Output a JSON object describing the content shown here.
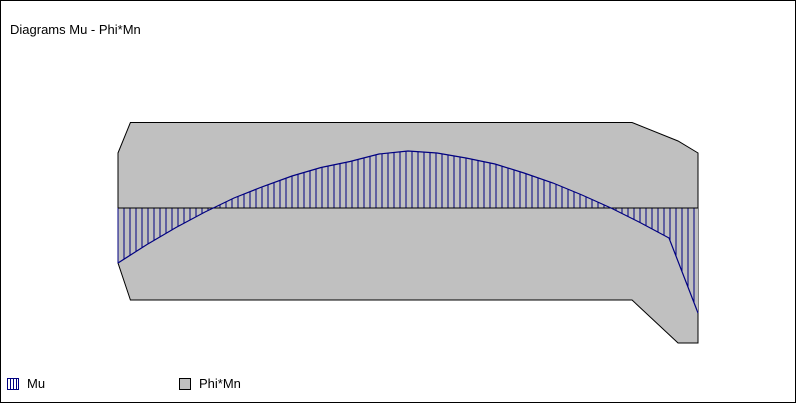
{
  "chart_data": {
    "type": "area",
    "title": "Diagrams Mu - Phi*Mn",
    "xlabel": "",
    "ylabel": "",
    "grid": false,
    "legend_position": "bottom-left",
    "series": [
      {
        "name": "Mu",
        "style": "vertical-hatch",
        "color": "#000080",
        "x": [
          0.0,
          0.05,
          0.1,
          0.15,
          0.2,
          0.25,
          0.3,
          0.35,
          0.4,
          0.45,
          0.5,
          0.55,
          0.6,
          0.65,
          0.7,
          0.75,
          0.8,
          0.85,
          0.9,
          0.95,
          1.0
        ],
        "values": [
          -0.55,
          -0.365,
          -0.195,
          -0.04,
          0.1,
          0.215,
          0.32,
          0.405,
          0.465,
          0.54,
          0.57,
          0.55,
          0.5,
          0.44,
          0.35,
          0.25,
          0.13,
          0.0,
          -0.145,
          -0.3,
          -1.05
        ]
      },
      {
        "name": "Phi*Mn",
        "style": "fill",
        "color": "#c0c0c0",
        "positive": {
          "x": [
            0.0,
            0.0214,
            0.8863,
            0.9656,
            1.0
          ],
          "values": [
            0.55,
            0.855,
            0.855,
            0.67,
            0.55
          ]
        },
        "negative": {
          "x": [
            0.0,
            0.0214,
            0.8863,
            0.9656,
            1.0
          ],
          "values": [
            -0.55,
            -0.92,
            -0.92,
            -1.35,
            -1.35
          ]
        }
      }
    ]
  },
  "legend": {
    "mu_label": "Mu",
    "phimn_label": "Phi*Mn"
  }
}
